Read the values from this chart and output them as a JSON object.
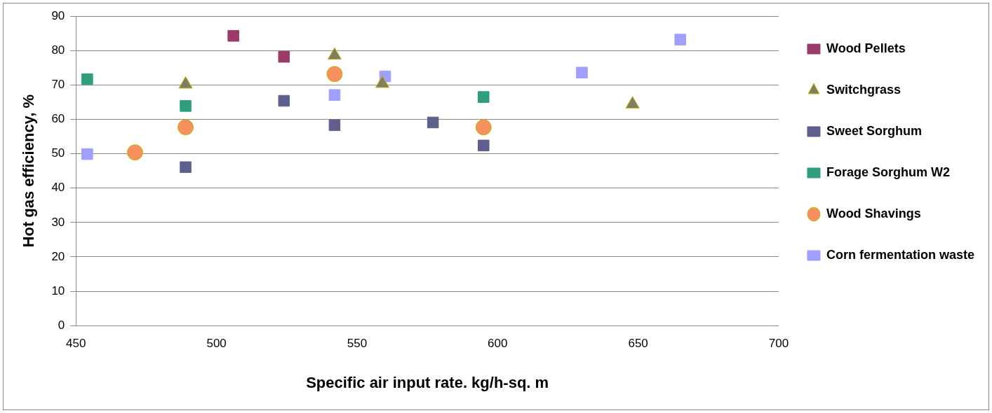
{
  "chart_data": {
    "type": "scatter",
    "xlabel": "Specific air input rate. kg/h-sq. m",
    "ylabel": "Hot gas efficiency, %",
    "xlim": [
      450,
      700
    ],
    "xticks": [
      450,
      500,
      550,
      600,
      650,
      700
    ],
    "ylim": [
      0,
      90
    ],
    "yticks": [
      0,
      10,
      20,
      30,
      40,
      50,
      60,
      70,
      80,
      90
    ],
    "grid": "y",
    "legend": "right",
    "series": [
      {
        "name": "Wood Pellets",
        "color": "#9b3b6b",
        "marker": "square",
        "x": [
          506,
          524
        ],
        "values": [
          84.3,
          78.2
        ]
      },
      {
        "name": "Switchgrass",
        "color": "#7f7f5f",
        "marker": "triangle",
        "x": [
          489,
          542,
          559,
          648
        ],
        "values": [
          70.2,
          78.6,
          70.4,
          64.4
        ]
      },
      {
        "name": "Sweet Sorghum",
        "color": "#5f5f8f",
        "marker": "square",
        "x": [
          489,
          524,
          542,
          577,
          595
        ],
        "values": [
          46.1,
          65.4,
          58.3,
          59.1,
          52.4
        ]
      },
      {
        "name": "Forage Sorghum W2",
        "color": "#2e9e7e",
        "marker": "square",
        "x": [
          454,
          489,
          595
        ],
        "values": [
          71.7,
          63.9,
          66.5
        ]
      },
      {
        "name": "Wood Shavings",
        "color": "#f79060",
        "marker": "circle",
        "x": [
          471,
          489,
          542,
          595
        ],
        "values": [
          50.4,
          57.7,
          73.2,
          57.7
        ]
      },
      {
        "name": "Corn fermentation waste",
        "color": "#9f9fff",
        "marker": "square",
        "x": [
          454,
          542,
          560,
          630,
          665
        ],
        "values": [
          49.9,
          67.1,
          72.5,
          73.6,
          83.2
        ]
      }
    ]
  }
}
